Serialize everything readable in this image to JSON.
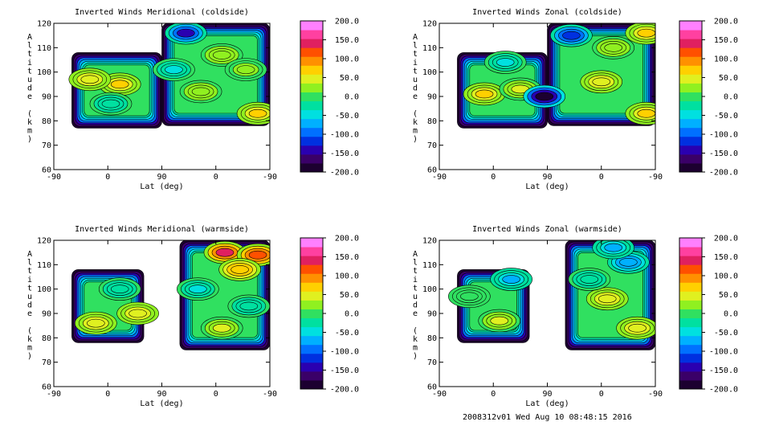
{
  "footer": "2008312v01 Wed Aug 10 08:48:15 2016",
  "chart_data": [
    {
      "type": "heatmap",
      "title": "Inverted Winds Meridional (coldside)",
      "xlabel": "Lat (deg)",
      "ylabel": "Altitude (km)",
      "x_tick_labels": [
        "-90",
        "0",
        "90",
        "0",
        "-90"
      ],
      "y_tick_labels": [
        "60",
        "70",
        "80",
        "90",
        "100",
        "110",
        "120"
      ],
      "ylim": [
        60,
        120
      ],
      "colorbar": {
        "ticks": [
          "200.0",
          "150.0",
          "100.0",
          "50.0",
          "0.0",
          "-50.0",
          "-100.0",
          "-150.0",
          "-200.0"
        ],
        "range": [
          -200,
          200
        ]
      },
      "regions": [
        {
          "x": [
            -60,
            90
          ],
          "y": [
            77,
            108
          ]
        },
        {
          "x": [
            90,
            270
          ],
          "y": [
            78,
            120
          ]
        }
      ],
      "features": [
        {
          "x": 20,
          "y": 95,
          "value": 60
        },
        {
          "x": -30,
          "y": 97,
          "value": 50
        },
        {
          "x": 155,
          "y": 92,
          "value": 25
        },
        {
          "x": 190,
          "y": 107,
          "value": 25
        },
        {
          "x": 250,
          "y": 83,
          "value": 60
        },
        {
          "x": 230,
          "y": 101,
          "value": 20
        },
        {
          "x": 5,
          "y": 87,
          "value": -25
        },
        {
          "x": 130,
          "y": 116,
          "value": -130
        },
        {
          "x": 110,
          "y": 101,
          "value": -40
        }
      ]
    },
    {
      "type": "heatmap",
      "title": "Inverted Winds Zonal (coldside)",
      "xlabel": "Lat (deg)",
      "ylabel": "Altitude (km)",
      "x_tick_labels": [
        "-90",
        "0",
        "90",
        "0",
        "-90"
      ],
      "y_tick_labels": [
        "60",
        "70",
        "80",
        "90",
        "100",
        "110",
        "120"
      ],
      "ylim": [
        60,
        120
      ],
      "colorbar": {
        "ticks": [
          "200.0",
          "150.0",
          "100.0",
          "50.0",
          "0.0",
          "-50.0",
          "-100.0",
          "-150.0",
          "-200.0"
        ],
        "range": [
          -200,
          200
        ]
      },
      "regions": [
        {
          "x": [
            -60,
            90
          ],
          "y": [
            77,
            108
          ]
        },
        {
          "x": [
            90,
            270
          ],
          "y": [
            78,
            120
          ]
        }
      ],
      "features": [
        {
          "x": -15,
          "y": 91,
          "value": 60
        },
        {
          "x": 45,
          "y": 93,
          "value": 40
        },
        {
          "x": 85,
          "y": 90,
          "value": -180
        },
        {
          "x": 180,
          "y": 96,
          "value": 50
        },
        {
          "x": 255,
          "y": 83,
          "value": 60
        },
        {
          "x": 255,
          "y": 116,
          "value": 60
        },
        {
          "x": 200,
          "y": 110,
          "value": 25
        },
        {
          "x": 20,
          "y": 104,
          "value": -40
        },
        {
          "x": 130,
          "y": 115,
          "value": -120
        }
      ]
    },
    {
      "type": "heatmap",
      "title": "Inverted Winds Meridional (warmside)",
      "xlabel": "Lat (deg)",
      "ylabel": "Altitude (km)",
      "x_tick_labels": [
        "-90",
        "0",
        "90",
        "0",
        "-90"
      ],
      "y_tick_labels": [
        "60",
        "70",
        "80",
        "90",
        "100",
        "110",
        "120"
      ],
      "ylim": [
        60,
        120
      ],
      "colorbar": {
        "ticks": [
          "200.0",
          "150.0",
          "100.0",
          "50.0",
          "0.0",
          "-50.0",
          "-100.0",
          "-150.0",
          "-200.0"
        ],
        "range": [
          -200,
          200
        ]
      },
      "regions": [
        {
          "x": [
            -60,
            60
          ],
          "y": [
            78,
            108
          ]
        },
        {
          "x": [
            120,
            270
          ],
          "y": [
            75,
            120
          ]
        }
      ],
      "features": [
        {
          "x": -20,
          "y": 86,
          "value": 50
        },
        {
          "x": 50,
          "y": 90,
          "value": 50
        },
        {
          "x": 195,
          "y": 115,
          "value": 130
        },
        {
          "x": 250,
          "y": 114,
          "value": 120
        },
        {
          "x": 220,
          "y": 108,
          "value": 80
        },
        {
          "x": 190,
          "y": 84,
          "value": 45
        },
        {
          "x": 150,
          "y": 100,
          "value": -40
        },
        {
          "x": 235,
          "y": 93,
          "value": -30
        },
        {
          "x": 20,
          "y": 100,
          "value": -30
        }
      ]
    },
    {
      "type": "heatmap",
      "title": "Inverted Winds Zonal (warmside)",
      "xlabel": "Lat (deg)",
      "ylabel": "Altitude (km)",
      "x_tick_labels": [
        "-90",
        "0",
        "90",
        "0",
        "-90"
      ],
      "y_tick_labels": [
        "60",
        "70",
        "80",
        "90",
        "100",
        "110",
        "120"
      ],
      "ylim": [
        60,
        120
      ],
      "colorbar": {
        "ticks": [
          "200.0",
          "150.0",
          "100.0",
          "50.0",
          "0.0",
          "-50.0",
          "-100.0",
          "-150.0",
          "-200.0"
        ],
        "range": [
          -200,
          200
        ]
      },
      "regions": [
        {
          "x": [
            -60,
            60
          ],
          "y": [
            78,
            108
          ]
        },
        {
          "x": [
            120,
            270
          ],
          "y": [
            75,
            120
          ]
        }
      ],
      "features": [
        {
          "x": 10,
          "y": 87,
          "value": 40
        },
        {
          "x": -40,
          "y": 97,
          "value": -10
        },
        {
          "x": 190,
          "y": 96,
          "value": 50
        },
        {
          "x": 240,
          "y": 84,
          "value": 50
        },
        {
          "x": 160,
          "y": 104,
          "value": -30
        },
        {
          "x": 225,
          "y": 111,
          "value": -80
        },
        {
          "x": 30,
          "y": 104,
          "value": -60
        },
        {
          "x": 200,
          "y": 117,
          "value": -60
        }
      ]
    }
  ]
}
